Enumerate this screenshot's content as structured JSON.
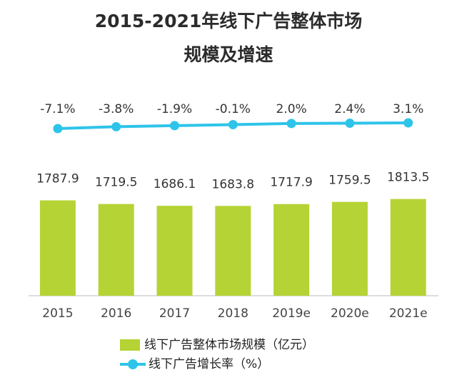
{
  "title_line1": "2015-2021年线下广告整体市场",
  "title_line2": "规模及增速",
  "colors": {
    "bar": "#b5d334",
    "line": "#2ec4e9",
    "axis": "#bbbbbb"
  },
  "chart_data": {
    "type": "bar+line",
    "title": "2015-2021年线下广告整体市场 规模及增速",
    "categories": [
      "2015",
      "2016",
      "2017",
      "2018",
      "2019e",
      "2020e",
      "2021e"
    ],
    "series": [
      {
        "name": "线下广告整体市场规模（亿元）",
        "type": "bar",
        "values": [
          1787.9,
          1719.5,
          1686.1,
          1683.8,
          1717.9,
          1759.5,
          1813.5
        ]
      },
      {
        "name": "线下广告增长率（%）",
        "type": "line",
        "values": [
          -7.1,
          -3.8,
          -1.9,
          -0.1,
          2.0,
          2.4,
          3.1
        ],
        "labels": [
          "-7.1%",
          "-3.8%",
          "-1.9%",
          "-0.1%",
          "2.0%",
          "2.4%",
          "3.1%"
        ]
      }
    ],
    "legend_position": "bottom",
    "grid": false
  }
}
